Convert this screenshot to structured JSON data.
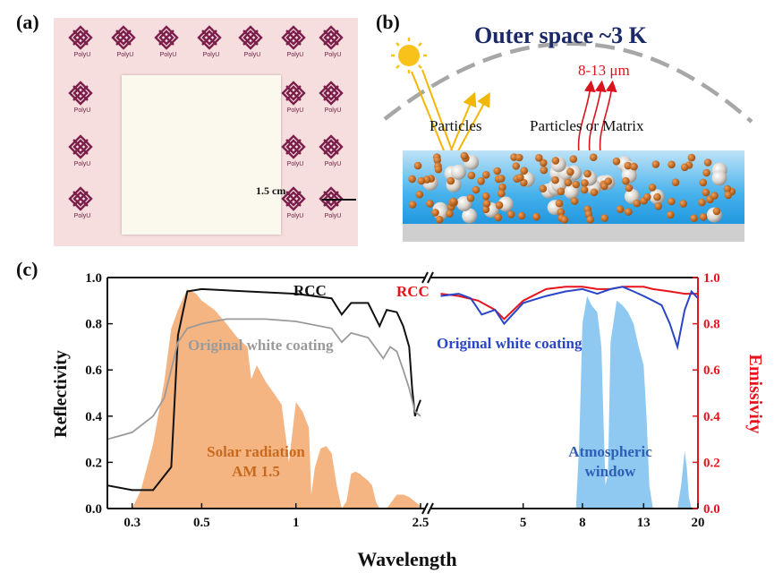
{
  "panel_a": {
    "label": "(a)",
    "logo_text": "PolyU",
    "scale_bar": "1.5 cm"
  },
  "panel_b": {
    "label": "(b)",
    "title": "Outer space ~3 K",
    "wavelength_label": "8-13 μm",
    "particles_label": "Particles",
    "particles_matrix_label": "Particles or Matrix"
  },
  "panel_c": {
    "label": "(c)",
    "x_label": "Wavelength",
    "y_left_label": "Reflectivity",
    "y_right_label": "Emissivity",
    "left_ticks": [
      "0.0",
      "0.2",
      "0.4",
      "0.6",
      "0.8",
      "1.0"
    ],
    "right_ticks": [
      "0.0",
      "0.2",
      "0.4",
      "0.6",
      "0.8",
      "1.0"
    ],
    "x_ticks_left": [
      "0.3",
      "0.5",
      "1",
      "2.5"
    ],
    "x_ticks_right": [
      "5",
      "8",
      "13",
      "20"
    ],
    "annotations": {
      "rcc_left": "RCC",
      "rcc_right": "RCC",
      "original_left": "Original white coating",
      "original_right": "Original white coating",
      "solar_line1": "Solar radiation",
      "solar_line2": "AM 1.5",
      "atm_line1": "Atmospheric",
      "atm_line2": "window"
    },
    "colors": {
      "rcc_left": "#111111",
      "original_left": "#9a9a9a",
      "rcc_right": "#e8141c",
      "original_right": "#2945c8",
      "solar_fill": "#f5b583",
      "atm_fill": "#8fc9f2",
      "right_axis": "#e8141c",
      "solar_text": "#c76a1e",
      "atm_text": "#2d5fb5"
    }
  },
  "chart_data": {
    "type": "line",
    "x_axis": {
      "label": "Wavelength",
      "scale": "log",
      "broken": true,
      "segments": [
        [
          0.25,
          2.5
        ],
        [
          2.5,
          20
        ]
      ]
    },
    "y_left": {
      "label": "Reflectivity",
      "range": [
        0,
        1
      ]
    },
    "y_right": {
      "label": "Emissivity",
      "range": [
        0,
        1
      ]
    },
    "series": [
      {
        "name": "RCC",
        "axis": "left",
        "x": [
          0.25,
          0.3,
          0.35,
          0.4,
          0.42,
          0.45,
          0.5,
          0.7,
          1.0,
          1.3,
          1.4,
          1.5,
          1.7,
          1.85,
          1.95,
          2.1,
          2.2,
          2.3,
          2.35,
          2.4,
          2.45,
          2.5
        ],
        "y": [
          0.1,
          0.08,
          0.08,
          0.18,
          0.75,
          0.94,
          0.95,
          0.94,
          0.93,
          0.91,
          0.84,
          0.89,
          0.89,
          0.79,
          0.86,
          0.85,
          0.79,
          0.7,
          0.52,
          0.4,
          0.44,
          0.47
        ]
      },
      {
        "name": "Original white coating",
        "axis": "left",
        "x": [
          0.25,
          0.3,
          0.35,
          0.38,
          0.42,
          0.45,
          0.5,
          0.6,
          0.8,
          1.0,
          1.3,
          1.4,
          1.5,
          1.7,
          1.9,
          2.0,
          2.1,
          2.2,
          2.3,
          2.4,
          2.5
        ],
        "y": [
          0.3,
          0.33,
          0.4,
          0.48,
          0.72,
          0.78,
          0.8,
          0.82,
          0.82,
          0.81,
          0.78,
          0.72,
          0.76,
          0.74,
          0.65,
          0.7,
          0.68,
          0.6,
          0.52,
          0.42,
          0.4
        ]
      },
      {
        "name": "RCC",
        "axis": "right",
        "x": [
          2.6,
          3.0,
          3.5,
          4.0,
          4.3,
          5.0,
          6.0,
          7.0,
          8.0,
          9.0,
          10.0,
          11.0,
          12.0,
          13.0,
          14.0,
          16.0,
          18.0,
          20.0
        ],
        "y": [
          0.93,
          0.92,
          0.9,
          0.86,
          0.82,
          0.9,
          0.95,
          0.96,
          0.96,
          0.95,
          0.95,
          0.96,
          0.96,
          0.96,
          0.95,
          0.94,
          0.93,
          0.93
        ]
      },
      {
        "name": "Original white coating",
        "axis": "right",
        "x": [
          2.6,
          3.0,
          3.3,
          3.6,
          4.0,
          4.3,
          5.0,
          6.0,
          7.0,
          8.0,
          9.0,
          10.0,
          11.0,
          12.0,
          13.0,
          14.0,
          15.0,
          16.0,
          17.0,
          18.0,
          19.0,
          20.0
        ],
        "y": [
          0.92,
          0.93,
          0.91,
          0.84,
          0.86,
          0.8,
          0.89,
          0.92,
          0.94,
          0.95,
          0.93,
          0.95,
          0.96,
          0.94,
          0.92,
          0.9,
          0.88,
          0.8,
          0.7,
          0.86,
          0.94,
          0.91
        ]
      }
    ],
    "filled_regions": [
      {
        "name": "Solar radiation AM 1.5",
        "axis": "left",
        "x": [
          0.3,
          0.32,
          0.35,
          0.38,
          0.4,
          0.42,
          0.45,
          0.48,
          0.5,
          0.55,
          0.6,
          0.65,
          0.7,
          0.72,
          0.75,
          0.8,
          0.85,
          0.9,
          0.93,
          0.95,
          1.0,
          1.05,
          1.1,
          1.12,
          1.15,
          1.2,
          1.25,
          1.3,
          1.35,
          1.4,
          1.45,
          1.5,
          1.55,
          1.6,
          1.7,
          1.75,
          1.8,
          1.85,
          1.95,
          2.0,
          2.1,
          2.2,
          2.3,
          2.4,
          2.5
        ],
        "y": [
          0.0,
          0.08,
          0.28,
          0.55,
          0.78,
          0.86,
          0.95,
          0.93,
          0.9,
          0.86,
          0.8,
          0.74,
          0.7,
          0.56,
          0.62,
          0.55,
          0.5,
          0.45,
          0.3,
          0.2,
          0.46,
          0.42,
          0.35,
          0.06,
          0.18,
          0.26,
          0.27,
          0.24,
          0.1,
          0.0,
          0.03,
          0.15,
          0.16,
          0.15,
          0.12,
          0.1,
          0.03,
          0.0,
          0.0,
          0.02,
          0.06,
          0.06,
          0.05,
          0.03,
          0.01
        ]
      },
      {
        "name": "Atmospheric window",
        "axis": "right",
        "x": [
          7.6,
          7.8,
          8.0,
          8.3,
          8.6,
          9.0,
          9.3,
          9.6,
          9.8,
          10.0,
          10.5,
          11.0,
          11.5,
          12.0,
          12.5,
          13.0,
          13.3,
          13.6,
          14.0,
          17.0,
          17.5,
          18.0,
          18.3,
          18.6,
          19.0
        ],
        "y": [
          0.0,
          0.28,
          0.8,
          0.92,
          0.88,
          0.85,
          0.7,
          0.1,
          0.15,
          0.72,
          0.9,
          0.88,
          0.85,
          0.8,
          0.7,
          0.62,
          0.4,
          0.1,
          0.0,
          0.0,
          0.1,
          0.25,
          0.18,
          0.05,
          0.0
        ]
      }
    ],
    "title": "",
    "grid": false
  }
}
